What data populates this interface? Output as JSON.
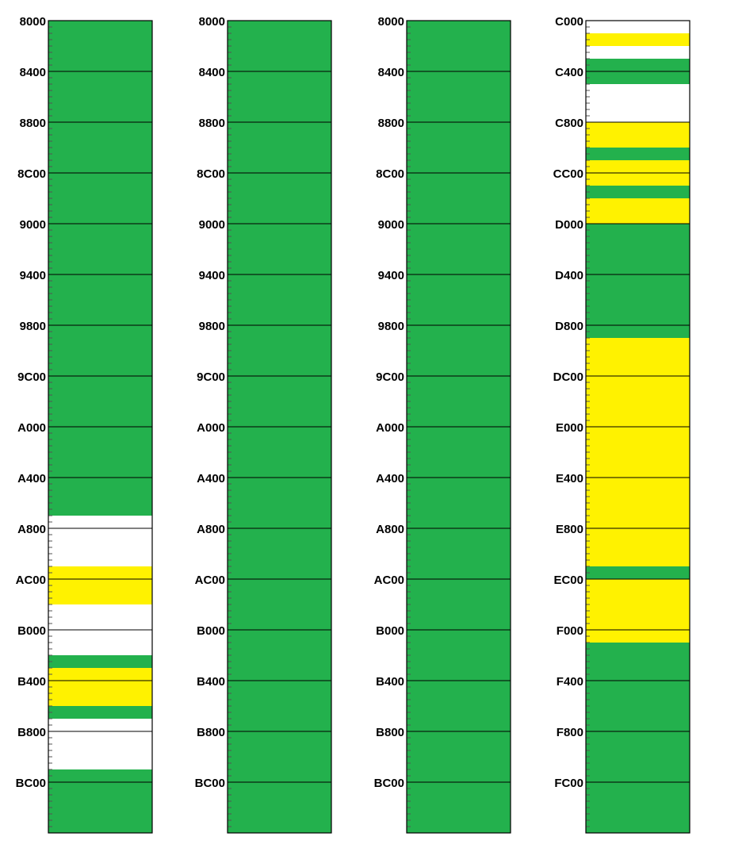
{
  "colors": {
    "green": "#23b14d",
    "yellow": "#fff200",
    "white": "#ffffff",
    "border": "#000000"
  },
  "chart_data": [
    {
      "type": "memory-map",
      "y_range": [
        "8000",
        "C000"
      ],
      "tick_labels": [
        "8000",
        "8400",
        "8800",
        "8C00",
        "9000",
        "9400",
        "9800",
        "9C00",
        "A000",
        "A400",
        "A800",
        "AC00",
        "B000",
        "B400",
        "B800",
        "BC00"
      ],
      "segments": [
        {
          "start": "8000",
          "end": "A700",
          "color": "green"
        },
        {
          "start": "A700",
          "end": "AB00",
          "color": "white"
        },
        {
          "start": "AB00",
          "end": "AE00",
          "color": "yellow"
        },
        {
          "start": "AE00",
          "end": "B200",
          "color": "white"
        },
        {
          "start": "B200",
          "end": "B300",
          "color": "green"
        },
        {
          "start": "B300",
          "end": "B600",
          "color": "yellow"
        },
        {
          "start": "B600",
          "end": "B700",
          "color": "green"
        },
        {
          "start": "B700",
          "end": "BB00",
          "color": "white"
        },
        {
          "start": "BB00",
          "end": "C000",
          "color": "green"
        }
      ]
    },
    {
      "type": "memory-map",
      "y_range": [
        "8000",
        "C000"
      ],
      "tick_labels": [
        "8000",
        "8400",
        "8800",
        "8C00",
        "9000",
        "9400",
        "9800",
        "9C00",
        "A000",
        "A400",
        "A800",
        "AC00",
        "B000",
        "B400",
        "B800",
        "BC00"
      ],
      "segments": [
        {
          "start": "8000",
          "end": "C000",
          "color": "green"
        }
      ]
    },
    {
      "type": "memory-map",
      "y_range": [
        "8000",
        "C000"
      ],
      "tick_labels": [
        "8000",
        "8400",
        "8800",
        "8C00",
        "9000",
        "9400",
        "9800",
        "9C00",
        "A000",
        "A400",
        "A800",
        "AC00",
        "B000",
        "B400",
        "B800",
        "BC00"
      ],
      "segments": [
        {
          "start": "8000",
          "end": "C000",
          "color": "green"
        }
      ]
    },
    {
      "type": "memory-map",
      "y_range": [
        "C000",
        "10000"
      ],
      "tick_labels": [
        "C000",
        "C400",
        "C800",
        "CC00",
        "D000",
        "D400",
        "D800",
        "DC00",
        "E000",
        "E400",
        "E800",
        "EC00",
        "F000",
        "F400",
        "F800",
        "FC00"
      ],
      "segments": [
        {
          "start": "C000",
          "end": "C100",
          "color": "white"
        },
        {
          "start": "C100",
          "end": "C200",
          "color": "yellow"
        },
        {
          "start": "C200",
          "end": "C300",
          "color": "white"
        },
        {
          "start": "C300",
          "end": "C500",
          "color": "green"
        },
        {
          "start": "C500",
          "end": "C800",
          "color": "white"
        },
        {
          "start": "C800",
          "end": "CA00",
          "color": "yellow"
        },
        {
          "start": "CA00",
          "end": "CB00",
          "color": "green"
        },
        {
          "start": "CB00",
          "end": "CD00",
          "color": "yellow"
        },
        {
          "start": "CD00",
          "end": "CE00",
          "color": "green"
        },
        {
          "start": "CE00",
          "end": "D000",
          "color": "yellow"
        },
        {
          "start": "D000",
          "end": "D900",
          "color": "green"
        },
        {
          "start": "D900",
          "end": "EB00",
          "color": "yellow"
        },
        {
          "start": "EB00",
          "end": "EC00",
          "color": "green"
        },
        {
          "start": "EC00",
          "end": "F100",
          "color": "yellow"
        },
        {
          "start": "F100",
          "end": "10000",
          "color": "green"
        }
      ]
    }
  ]
}
